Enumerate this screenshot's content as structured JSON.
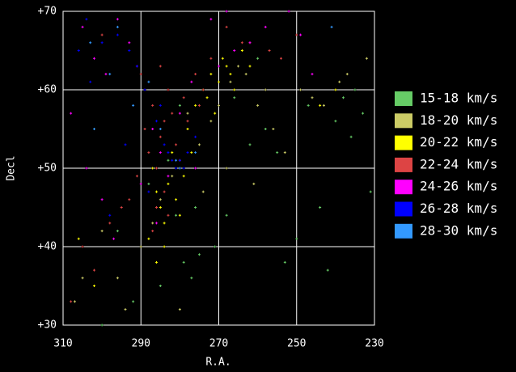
{
  "chart_data": {
    "type": "scatter",
    "xlabel": "R.A.",
    "ylabel": "Decl",
    "xlim": [
      310,
      230
    ],
    "ylim": [
      30,
      70
    ],
    "xticks": [
      310,
      290,
      270,
      250,
      230
    ],
    "yticks": [
      {
        "value": 30,
        "label": "+30"
      },
      {
        "value": 40,
        "label": "+40"
      },
      {
        "value": 50,
        "label": "+50"
      },
      {
        "value": 60,
        "label": "+60"
      },
      {
        "value": 70,
        "label": "+70"
      }
    ],
    "grid": true,
    "legend": "right",
    "series": [
      {
        "name": "15-18 km/s",
        "color": "#66cc66",
        "x": [
          281,
          279,
          277,
          275,
          262,
          258,
          255,
          247,
          240,
          236,
          233,
          231,
          268,
          285,
          292,
          300,
          296,
          283,
          276,
          271,
          253,
          244,
          238,
          235,
          288,
          280,
          266,
          260,
          250,
          242
        ],
        "values": [
          44,
          38,
          36,
          39,
          53,
          55,
          52,
          58,
          56,
          54,
          57,
          47,
          44,
          35,
          33,
          30,
          42,
          51,
          45,
          40,
          38,
          45,
          59,
          60,
          48,
          58,
          59,
          64,
          41,
          37
        ]
      },
      {
        "name": "18-20 km/s",
        "color": "#cccc66",
        "x": [
          267,
          265,
          263,
          270,
          272,
          260,
          258,
          256,
          275,
          278,
          282,
          285,
          287,
          290,
          300,
          305,
          307,
          294,
          249,
          246,
          243,
          239,
          237,
          232,
          253,
          261,
          268,
          274,
          280,
          296
        ],
        "values": [
          61,
          63,
          62,
          58,
          56,
          58,
          60,
          55,
          53,
          57,
          49,
          46,
          43,
          40,
          42,
          36,
          33,
          32,
          60,
          59,
          58,
          61,
          62,
          64,
          52,
          48,
          50,
          47,
          32,
          36
        ]
      },
      {
        "name": "20-22 km/s",
        "color": "#ffff00",
        "x": [
          286,
          285,
          284,
          283,
          282,
          287,
          288,
          281,
          280,
          279,
          278,
          276,
          274,
          272,
          270,
          269,
          268,
          266,
          264,
          262,
          277,
          284,
          286,
          273,
          271,
          267,
          244,
          240,
          302,
          306
        ],
        "values": [
          47,
          45,
          43,
          48,
          52,
          50,
          41,
          46,
          44,
          49,
          55,
          58,
          60,
          62,
          61,
          64,
          63,
          60,
          65,
          63,
          52,
          40,
          38,
          59,
          57,
          62,
          58,
          60,
          35,
          41
        ]
      },
      {
        "name": "22-24 km/s",
        "color": "#dd4444",
        "x": [
          289,
          288,
          287,
          286,
          285,
          284,
          283,
          282,
          281,
          280,
          279,
          278,
          276,
          274,
          272,
          290,
          291,
          293,
          295,
          298,
          302,
          305,
          308,
          283,
          287,
          285,
          262,
          257,
          254,
          250,
          264,
          268,
          275,
          300,
          286,
          284
        ],
        "values": [
          55,
          52,
          58,
          50,
          54,
          47,
          60,
          57,
          53,
          51,
          59,
          56,
          62,
          60,
          64,
          62,
          49,
          46,
          45,
          43,
          37,
          40,
          33,
          44,
          42,
          63,
          66,
          65,
          64,
          67,
          66,
          68,
          58,
          67,
          45,
          56
        ]
      },
      {
        "name": "24-26 km/s",
        "color": "#ff00ff",
        "x": [
          305,
          302,
          299,
          296,
          293,
          291,
          289,
          287,
          285,
          283,
          280,
          277,
          272,
          268,
          262,
          258,
          252,
          249,
          246,
          308,
          304,
          300,
          297,
          290,
          286,
          276,
          266,
          270
        ],
        "values": [
          68,
          64,
          62,
          69,
          66,
          63,
          60,
          55,
          52,
          49,
          57,
          61,
          69,
          70,
          66,
          68,
          70,
          67,
          62,
          57,
          50,
          46,
          41,
          48,
          43,
          50,
          65,
          63
        ]
      },
      {
        "name": "26-28 km/s",
        "color": "#0000ff",
        "x": [
          282,
          281,
          280,
          279,
          278,
          283,
          284,
          286,
          289,
          291,
          293,
          296,
          300,
          304,
          306,
          288,
          285,
          276,
          294,
          303,
          298
        ],
        "values": [
          51,
          50,
          51,
          50,
          52,
          52,
          53,
          56,
          60,
          63,
          65,
          67,
          66,
          69,
          65,
          47,
          58,
          54,
          53,
          61,
          44
        ]
      },
      {
        "name": "28-30 km/s",
        "color": "#3399ff",
        "x": [
          281,
          280,
          285,
          292,
          298,
          303,
          296,
          288,
          241,
          276,
          302
        ],
        "values": [
          51,
          50,
          55,
          58,
          62,
          66,
          68,
          61,
          68,
          52,
          55
        ]
      }
    ]
  }
}
